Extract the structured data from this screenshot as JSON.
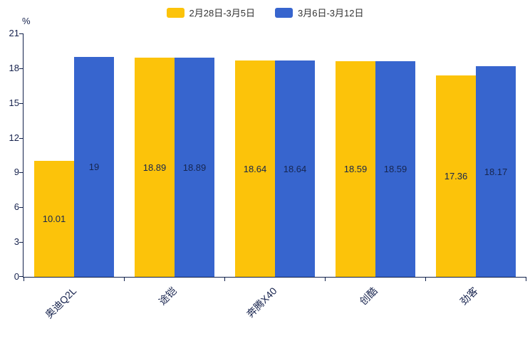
{
  "chart_data": {
    "type": "bar",
    "title": "",
    "categories": [
      "奥迪Q2L",
      "途铠",
      "奔腾X40",
      "创酷",
      "劲客"
    ],
    "series": [
      {
        "name": "2月28日-3月5日",
        "color": "#FCC30A",
        "values": [
          10.01,
          18.89,
          18.64,
          18.59,
          17.36
        ]
      },
      {
        "name": "3月6日-3月12日",
        "color": "#3765CE",
        "values": [
          19,
          18.89,
          18.64,
          18.59,
          18.17
        ]
      }
    ],
    "xlabel": "",
    "ylabel": "%",
    "ylim": [
      0,
      21
    ],
    "yticks": [
      0,
      3,
      6,
      9,
      12,
      15,
      18,
      21
    ],
    "legend_position": "top",
    "grid": false,
    "value_labels": "inside-center",
    "colors": {
      "axis": "#10204a",
      "text": "#16224d",
      "background": "#ffffff"
    }
  }
}
